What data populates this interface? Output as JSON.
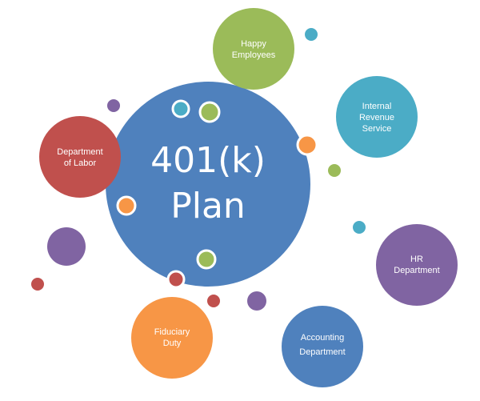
{
  "center": {
    "title_line1": "401(k)",
    "title_line2": "Plan",
    "color": "#4F81BD"
  },
  "nodes": [
    {
      "id": "happy-employees",
      "label_lines": [
        "Happy",
        "Employees"
      ],
      "color": "#9BBB59"
    },
    {
      "id": "internal-revenue-service",
      "label_lines": [
        "Internal",
        "Revenue",
        "Service"
      ],
      "color": "#4BACC6"
    },
    {
      "id": "hr-department",
      "label_lines": [
        "HR",
        "Department"
      ],
      "color": "#8064A2"
    },
    {
      "id": "accounting-department",
      "label_lines": [
        "Accounting",
        "Department"
      ],
      "color": "#4F81BD"
    },
    {
      "id": "fiduciary-duty",
      "label_lines": [
        "Fiduciary",
        "Duty"
      ],
      "color": "#F79646"
    },
    {
      "id": "department-of-labor",
      "label_lines": [
        "Department",
        "of Labor"
      ],
      "color": "#C0504D"
    }
  ],
  "palette": {
    "blue": "#4F81BD",
    "red": "#C0504D",
    "green": "#9BBB59",
    "purple": "#8064A2",
    "teal": "#4BACC6",
    "orange": "#F79646"
  }
}
